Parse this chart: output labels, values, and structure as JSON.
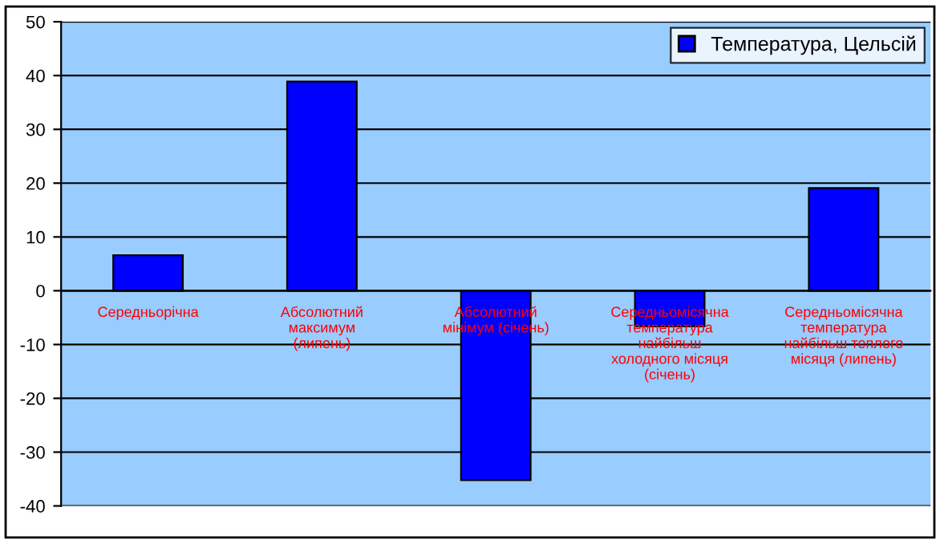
{
  "chart_data": {
    "type": "bar",
    "categories": [
      "Середньорічна",
      "Абсолютний\nмаксимум\n(липень)",
      "Абсолютний\nмінімум (січень)",
      "Середньомісячна\nтемпература\nнайбільш\nхолодного місяця\n(січень)",
      "Середньомісячна\nтемпература\nнайбільш теплого\nмісяця (липень)"
    ],
    "series": [
      {
        "name": "Температура, Цельсій",
        "color": "#0000ff",
        "values": [
          6.6,
          38.9,
          -35.2,
          -6.6,
          19.1
        ]
      }
    ],
    "ylim": [
      -40,
      50
    ],
    "yticks": [
      -40,
      -30,
      -20,
      -10,
      0,
      10,
      20,
      30,
      40,
      50
    ],
    "grid": "y",
    "legend": "top right"
  }
}
